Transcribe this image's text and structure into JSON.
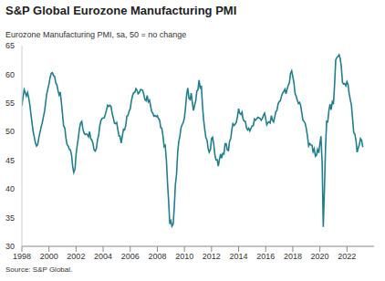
{
  "chart_data": {
    "type": "line",
    "title": "S&P Global Eurozone Manufacturing PMI",
    "subtitle": "Eurozone Manufacturing PMI, sa, 50 = no change",
    "source": "Source: S&P Global.",
    "color": "#1f7f8f",
    "grid": false,
    "xlim": [
      1998,
      2024
    ],
    "xticks": [
      1998,
      2000,
      2002,
      2004,
      2006,
      2008,
      2010,
      2012,
      2014,
      2016,
      2018,
      2020,
      2022
    ],
    "ylim": [
      30,
      65
    ],
    "yticks": [
      30,
      35,
      40,
      45,
      50,
      55,
      60,
      65
    ],
    "x": [
      1998,
      1998.08,
      1998.17,
      1998.25,
      1998.33,
      1998.42,
      1998.5,
      1998.58,
      1998.67,
      1998.75,
      1998.83,
      1998.92,
      1999,
      1999.08,
      1999.17,
      1999.25,
      1999.33,
      1999.42,
      1999.5,
      1999.58,
      1999.67,
      1999.75,
      1999.83,
      1999.92,
      2000,
      2000.08,
      2000.17,
      2000.25,
      2000.33,
      2000.42,
      2000.5,
      2000.58,
      2000.67,
      2000.75,
      2000.83,
      2000.92,
      2001,
      2001.08,
      2001.17,
      2001.25,
      2001.33,
      2001.42,
      2001.5,
      2001.58,
      2001.67,
      2001.75,
      2001.83,
      2001.92,
      2002,
      2002.08,
      2002.17,
      2002.25,
      2002.33,
      2002.42,
      2002.5,
      2002.58,
      2002.67,
      2002.75,
      2002.83,
      2002.92,
      2003,
      2003.08,
      2003.17,
      2003.25,
      2003.33,
      2003.42,
      2003.5,
      2003.58,
      2003.67,
      2003.75,
      2003.83,
      2003.92,
      2004,
      2004.08,
      2004.17,
      2004.25,
      2004.33,
      2004.42,
      2004.5,
      2004.58,
      2004.67,
      2004.75,
      2004.83,
      2004.92,
      2005,
      2005.08,
      2005.17,
      2005.25,
      2005.33,
      2005.42,
      2005.5,
      2005.58,
      2005.67,
      2005.75,
      2005.83,
      2005.92,
      2006,
      2006.08,
      2006.17,
      2006.25,
      2006.33,
      2006.42,
      2006.5,
      2006.58,
      2006.67,
      2006.75,
      2006.83,
      2006.92,
      2007,
      2007.08,
      2007.17,
      2007.25,
      2007.33,
      2007.42,
      2007.5,
      2007.58,
      2007.67,
      2007.75,
      2007.83,
      2007.92,
      2008,
      2008.08,
      2008.17,
      2008.25,
      2008.33,
      2008.42,
      2008.5,
      2008.58,
      2008.67,
      2008.75,
      2008.83,
      2008.92,
      2009,
      2009.08,
      2009.17,
      2009.25,
      2009.33,
      2009.42,
      2009.5,
      2009.58,
      2009.67,
      2009.75,
      2009.83,
      2009.92,
      2010,
      2010.08,
      2010.17,
      2010.25,
      2010.33,
      2010.42,
      2010.5,
      2010.58,
      2010.67,
      2010.75,
      2010.83,
      2010.92,
      2011,
      2011.08,
      2011.17,
      2011.25,
      2011.33,
      2011.42,
      2011.5,
      2011.58,
      2011.67,
      2011.75,
      2011.83,
      2011.92,
      2012,
      2012.08,
      2012.17,
      2012.25,
      2012.33,
      2012.42,
      2012.5,
      2012.58,
      2012.67,
      2012.75,
      2012.83,
      2012.92,
      2013,
      2013.08,
      2013.17,
      2013.25,
      2013.33,
      2013.42,
      2013.5,
      2013.58,
      2013.67,
      2013.75,
      2013.83,
      2013.92,
      2014,
      2014.08,
      2014.17,
      2014.25,
      2014.33,
      2014.42,
      2014.5,
      2014.58,
      2014.67,
      2014.75,
      2014.83,
      2014.92,
      2015,
      2015.08,
      2015.17,
      2015.25,
      2015.33,
      2015.42,
      2015.5,
      2015.58,
      2015.67,
      2015.75,
      2015.83,
      2015.92,
      2016,
      2016.08,
      2016.17,
      2016.25,
      2016.33,
      2016.42,
      2016.5,
      2016.58,
      2016.67,
      2016.75,
      2016.83,
      2016.92,
      2017,
      2017.08,
      2017.17,
      2017.25,
      2017.33,
      2017.42,
      2017.5,
      2017.58,
      2017.67,
      2017.75,
      2017.83,
      2017.92,
      2018,
      2018.08,
      2018.17,
      2018.25,
      2018.33,
      2018.42,
      2018.5,
      2018.58,
      2018.67,
      2018.75,
      2018.83,
      2018.92,
      2019,
      2019.08,
      2019.17,
      2019.25,
      2019.33,
      2019.42,
      2019.5,
      2019.58,
      2019.67,
      2019.75,
      2019.83,
      2019.92,
      2020,
      2020.08,
      2020.17,
      2020.25,
      2020.33,
      2020.42,
      2020.5,
      2020.58,
      2020.67,
      2020.75,
      2020.83,
      2020.92,
      2021,
      2021.08,
      2021.17,
      2021.25,
      2021.33,
      2021.42,
      2021.5,
      2021.58,
      2021.67,
      2021.75,
      2021.83,
      2021.92,
      2022,
      2022.08,
      2022.17,
      2022.25,
      2022.33,
      2022.42,
      2022.5,
      2022.58,
      2022.67,
      2022.75,
      2022.83,
      2022.92,
      2023,
      2023.08,
      2023.17
    ],
    "values": [
      54.5,
      56.0,
      57.3,
      56.8,
      56.2,
      56.8,
      55.9,
      54.8,
      53.0,
      51.5,
      50.0,
      49.0,
      48.0,
      47.5,
      47.8,
      48.9,
      49.8,
      50.8,
      51.5,
      52.5,
      53.5,
      55.0,
      56.5,
      57.5,
      58.3,
      59.4,
      60.2,
      60.3,
      59.8,
      59.6,
      58.5,
      58.2,
      57.1,
      56.4,
      56.9,
      55.0,
      53.0,
      51.0,
      50.6,
      48.9,
      47.8,
      47.5,
      46.9,
      46.8,
      45.9,
      43.9,
      42.9,
      43.5,
      46.0,
      47.5,
      49.0,
      50.5,
      51.5,
      51.8,
      50.5,
      49.8,
      49.5,
      49.6,
      49.5,
      49.1,
      50.0,
      48.8,
      48.5,
      47.9,
      46.8,
      46.6,
      47.1,
      48.5,
      49.4,
      51.0,
      51.9,
      52.3,
      52.4,
      52.4,
      53.1,
      53.8,
      54.6,
      54.4,
      54.6,
      54.4,
      53.1,
      52.4,
      51.5,
      51.4,
      51.6,
      50.4,
      49.2,
      49.2,
      48.0,
      49.3,
      50.4,
      50.3,
      51.1,
      52.7,
      52.8,
      53.6,
      54.0,
      55.3,
      56.3,
      56.8,
      56.8,
      57.5,
      57.2,
      56.6,
      56.8,
      57.3,
      57.3,
      57.2,
      56.5,
      55.6,
      55.4,
      56.3,
      55.2,
      55.5,
      54.5,
      53.5,
      53.2,
      52.7,
      52.8,
      52.6,
      52.8,
      52.3,
      52.0,
      50.7,
      50.6,
      49.2,
      47.4,
      47.6,
      45.0,
      41.1,
      38.0,
      33.9,
      34.4,
      33.5,
      33.9,
      36.8,
      40.7,
      42.6,
      46.3,
      48.2,
      49.3,
      50.7,
      51.2,
      51.6,
      52.4,
      54.2,
      56.6,
      57.6,
      55.8,
      55.6,
      56.7,
      55.1,
      53.7,
      54.6,
      55.3,
      57.1,
      57.3,
      59.0,
      57.5,
      58.0,
      54.6,
      52.0,
      50.4,
      49.0,
      48.5,
      47.1,
      46.4,
      46.9,
      48.8,
      49.0,
      47.7,
      45.9,
      45.1,
      45.1,
      44.0,
      45.1,
      46.1,
      45.4,
      46.2,
      46.1,
      47.9,
      47.9,
      46.8,
      46.7,
      48.3,
      48.8,
      50.3,
      51.4,
      51.1,
      51.3,
      51.6,
      52.7,
      54.0,
      53.2,
      53.0,
      53.4,
      52.2,
      51.8,
      51.8,
      50.7,
      50.3,
      50.6,
      50.1,
      50.6,
      51.0,
      51.0,
      52.2,
      52.0,
      52.2,
      52.5,
      52.4,
      52.3,
      52.0,
      52.3,
      52.8,
      53.2,
      52.3,
      51.2,
      51.6,
      51.7,
      51.5,
      52.8,
      52.0,
      51.7,
      52.6,
      53.5,
      53.7,
      54.9,
      55.2,
      55.4,
      56.2,
      56.7,
      57.0,
      57.4,
      56.6,
      57.4,
      58.1,
      58.5,
      60.1,
      60.6,
      59.6,
      58.6,
      56.6,
      56.2,
      55.5,
      54.9,
      55.1,
      54.6,
      53.2,
      52.0,
      51.8,
      51.4,
      50.5,
      49.3,
      47.5,
      47.9,
      47.7,
      47.6,
      46.5,
      47.0,
      45.7,
      45.9,
      46.9,
      46.3,
      47.9,
      49.2,
      44.5,
      33.4,
      39.4,
      47.4,
      51.8,
      51.7,
      53.7,
      54.8,
      53.8,
      55.2,
      54.8,
      57.9,
      62.5,
      62.9,
      63.1,
      63.4,
      62.8,
      61.4,
      58.6,
      58.3,
      58.4,
      58.0,
      58.7,
      58.2,
      56.5,
      55.5,
      54.6,
      52.1,
      49.8,
      49.6,
      48.4,
      46.4,
      47.1,
      47.8,
      48.8,
      48.5,
      47.3
    ]
  }
}
